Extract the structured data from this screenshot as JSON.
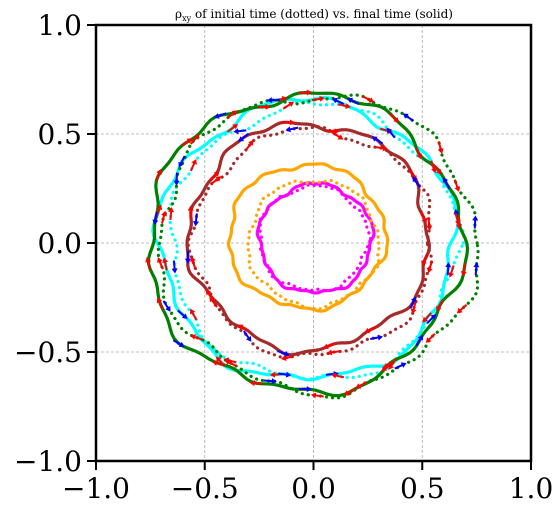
{
  "chart_data": {
    "type": "line",
    "title": "ρxy of initial time (dotted) vs. final time (solid)",
    "title_parts": {
      "rho": "ρ",
      "subscript": "xy",
      "rest": " of initial time (dotted) vs. final time (solid)"
    },
    "xlabel": "",
    "ylabel": "",
    "xlim": [
      -1.0,
      1.0
    ],
    "ylim": [
      -1.0,
      1.0
    ],
    "xticks": [
      -1.0,
      -0.5,
      0.0,
      0.5,
      1.0
    ],
    "yticks": [
      -1.0,
      -0.5,
      0.0,
      0.5,
      1.0
    ],
    "xtick_labels": [
      "−1.0",
      "−0.5",
      "0.0",
      "0.5",
      "1.0"
    ],
    "ytick_labels": [
      "−1.0",
      "−0.5",
      "0.0",
      "0.5",
      "1.0"
    ],
    "grid": true,
    "legend": "none",
    "series": [
      {
        "color": "#ff00ff",
        "style": "solid",
        "center": [
          0.01,
          0.02
        ],
        "rx": 0.26,
        "ry": 0.25
      },
      {
        "color": "#ff00ff",
        "style": "dotted",
        "center": [
          0.0,
          0.02
        ],
        "rx": 0.25,
        "ry": 0.24
      },
      {
        "color": "#ffa500",
        "style": "solid",
        "center": [
          -0.03,
          0.03
        ],
        "rx": 0.36,
        "ry": 0.33
      },
      {
        "color": "#ffa500",
        "style": "dotted",
        "center": [
          0.0,
          0.0
        ],
        "rx": 0.3,
        "ry": 0.29
      },
      {
        "color": "#a52a2a",
        "style": "solid",
        "center": [
          -0.02,
          0.03
        ],
        "rx": 0.55,
        "ry": 0.52
      },
      {
        "color": "#a52a2a",
        "style": "dotted",
        "center": [
          0.0,
          0.0
        ],
        "rx": 0.55,
        "ry": 0.52
      },
      {
        "color": "#00ffff",
        "style": "solid",
        "center": [
          -0.03,
          0.01
        ],
        "rx": 0.68,
        "ry": 0.64
      },
      {
        "color": "#00ffff",
        "style": "dotted",
        "center": [
          0.0,
          0.0
        ],
        "rx": 0.66,
        "ry": 0.63
      },
      {
        "color": "#008000",
        "style": "solid",
        "center": [
          -0.04,
          0.0
        ],
        "rx": 0.72,
        "ry": 0.68
      },
      {
        "color": "#008000",
        "style": "dotted",
        "center": [
          0.02,
          0.0
        ],
        "rx": 0.73,
        "ry": 0.68
      }
    ],
    "arrow_colors": [
      "#0000ff",
      "#ff0000"
    ]
  }
}
